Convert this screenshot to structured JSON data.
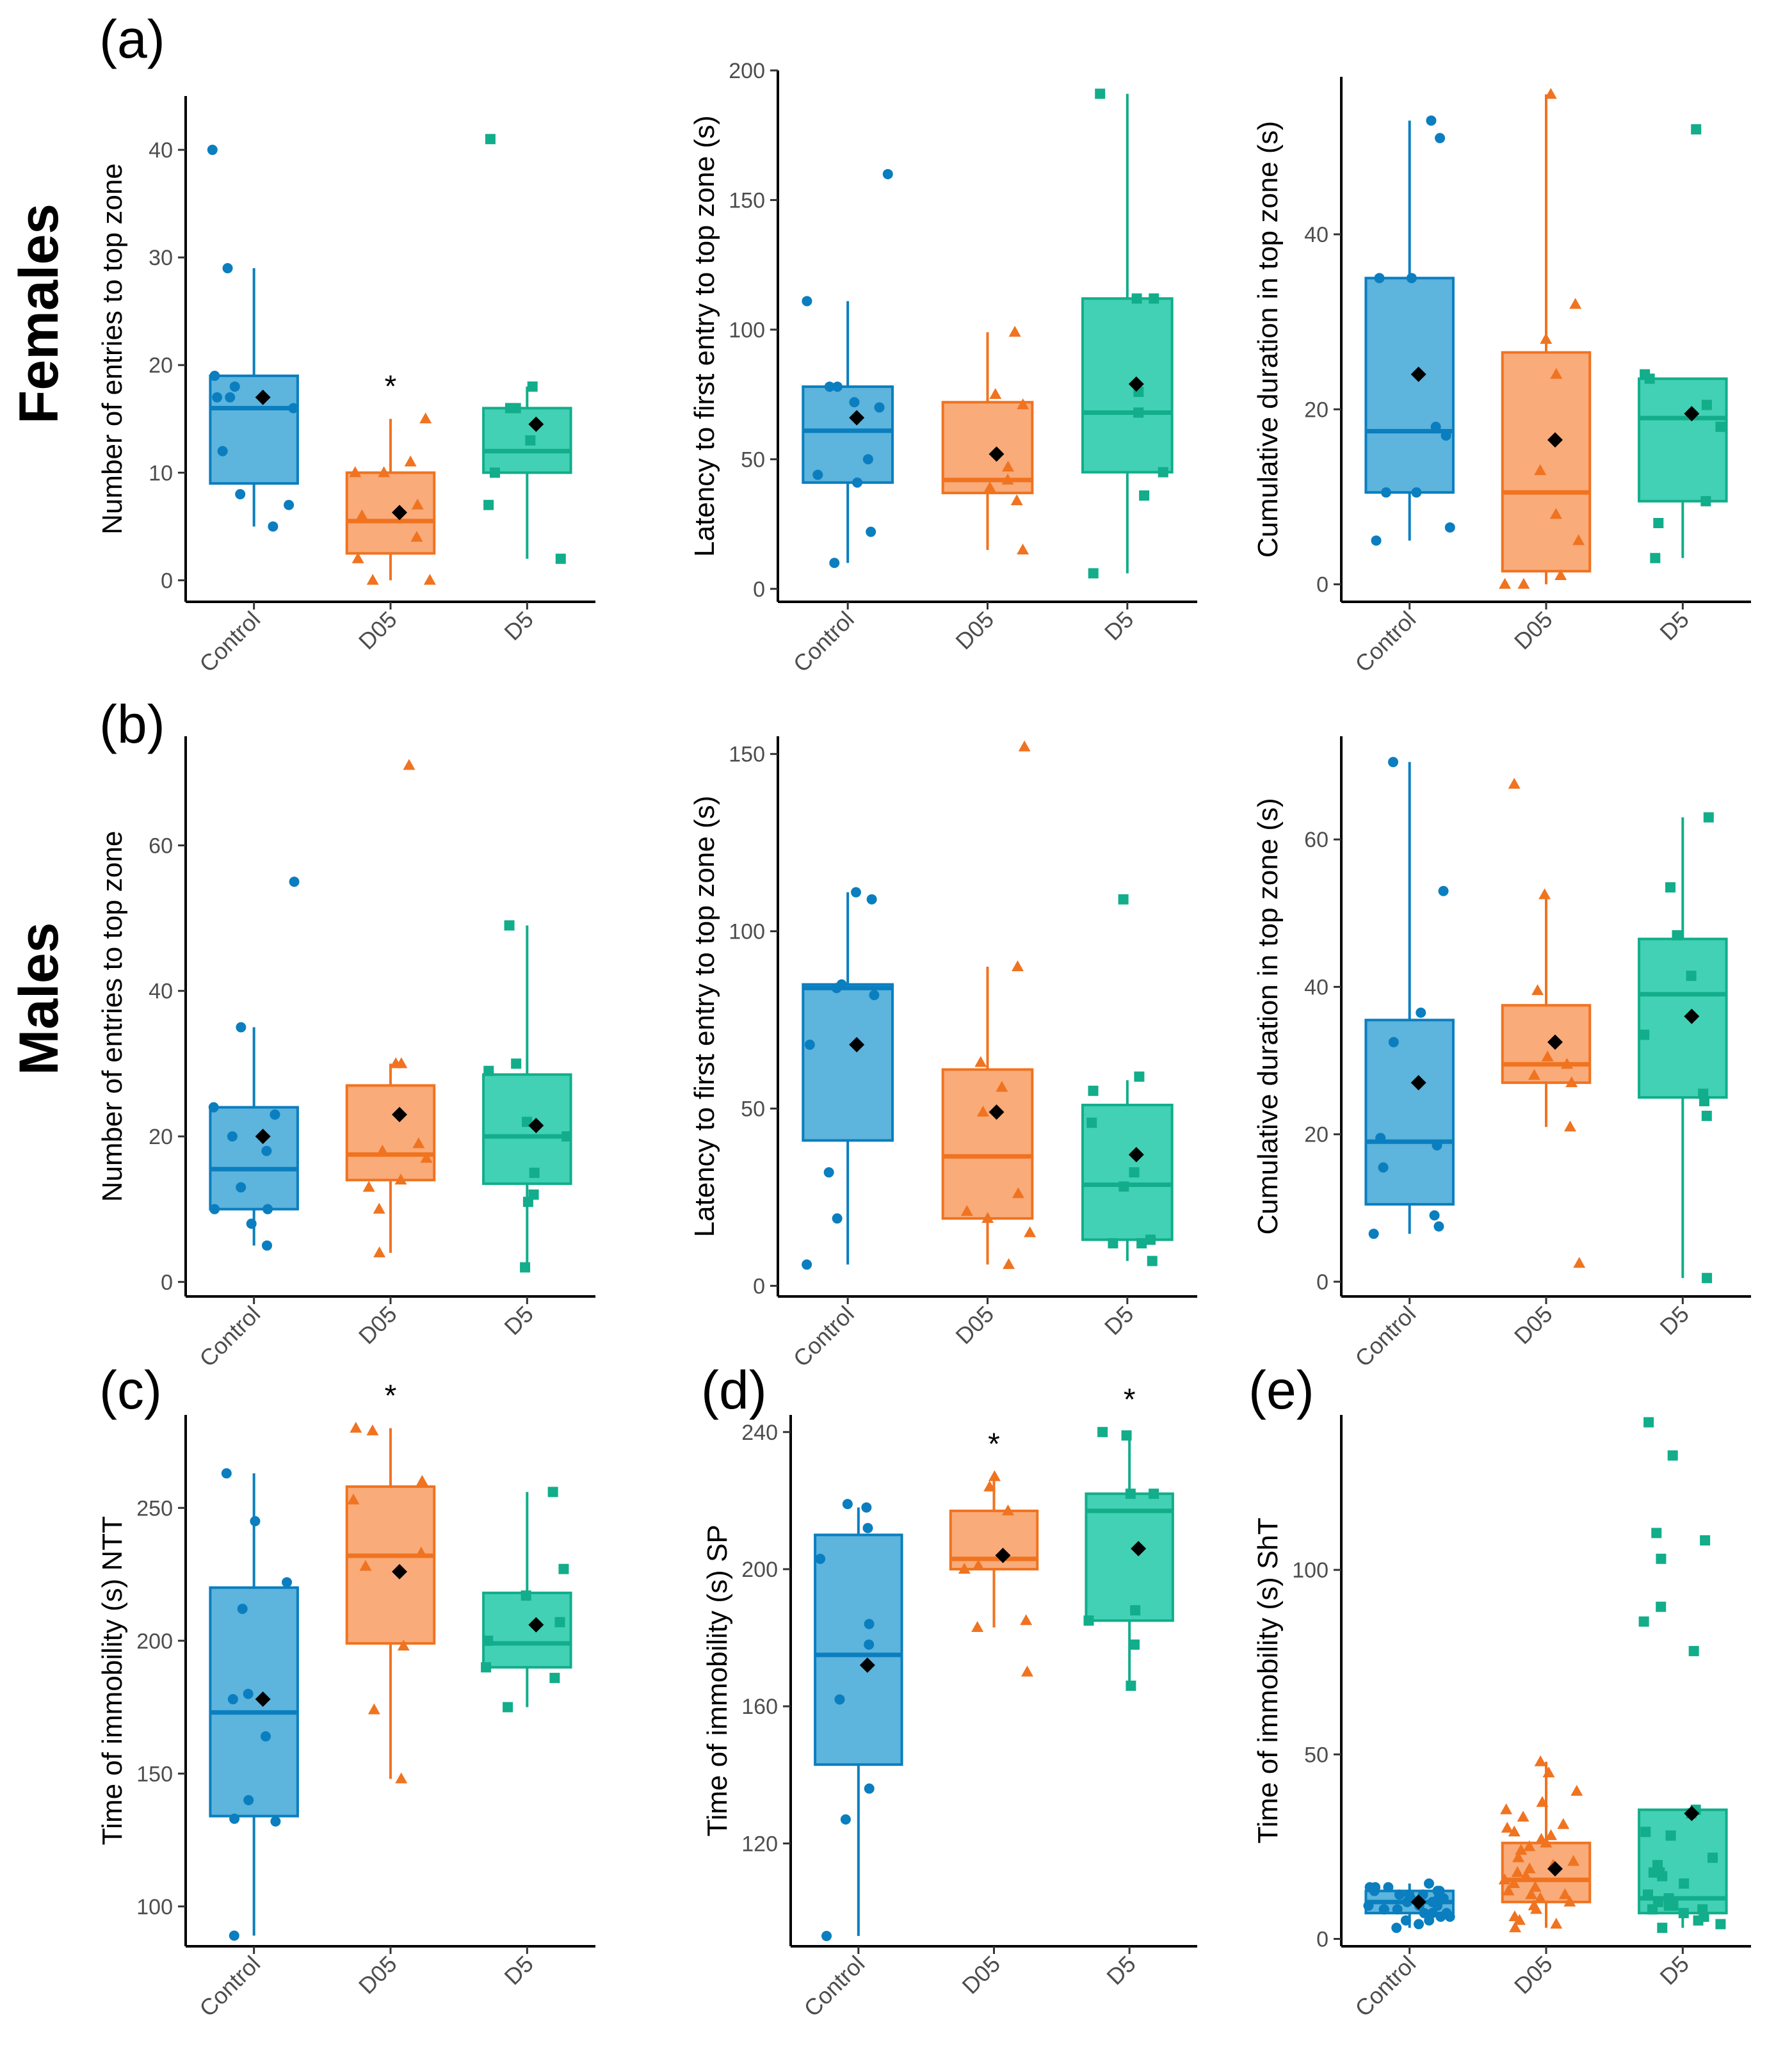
{
  "colors": {
    "Control": "#0a7ebf",
    "D05": "#f07320",
    "D5": "#12ad8a",
    "Control_fill": "#5db4dc",
    "D05_fill": "#f9ab7a",
    "D5_fill": "#42d1b4",
    "mean": "#000000",
    "axis": "#000000"
  },
  "chart_data": [
    {
      "id": "a1",
      "letter": "(a)",
      "type": "boxplot",
      "ylabel": "Number of entries to top zone",
      "categories": [
        "Control",
        "D05",
        "D5"
      ],
      "ylim": [
        -2,
        45
      ],
      "yticks": [
        0,
        10,
        20,
        30,
        40
      ],
      "boxes": [
        {
          "q1": 9,
          "median": 16,
          "q3": 19,
          "whisker_low": 5,
          "whisker_high": 29,
          "mean": 17,
          "points": [
            40,
            29,
            19,
            18,
            17,
            17,
            16,
            12,
            8,
            7,
            5
          ]
        },
        {
          "q1": 2.5,
          "median": 5.5,
          "q3": 10,
          "whisker_low": 0,
          "whisker_high": 15,
          "mean": 6.3,
          "points": [
            15,
            11,
            10,
            10,
            7,
            6,
            4,
            2,
            0,
            0
          ]
        },
        {
          "q1": 10,
          "median": 12,
          "q3": 16,
          "whisker_low": 2,
          "whisker_high": 18,
          "mean": 14.5,
          "points": [
            41,
            18,
            16,
            16,
            13,
            10,
            7,
            2
          ]
        }
      ],
      "sig": [
        "",
        "*",
        ""
      ]
    },
    {
      "id": "a2",
      "letter": "",
      "type": "boxplot",
      "ylabel": "Latency to first entry to top zone (s)",
      "categories": [
        "Control",
        "D05",
        "D5"
      ],
      "ylim": [
        -5,
        200
      ],
      "yticks": [
        0,
        50,
        100,
        150,
        200
      ],
      "boxes": [
        {
          "q1": 41,
          "median": 61,
          "q3": 78,
          "whisker_low": 10,
          "whisker_high": 111,
          "mean": 66,
          "points": [
            160,
            111,
            78,
            78,
            72,
            70,
            50,
            44,
            41,
            22,
            10
          ]
        },
        {
          "q1": 37,
          "median": 42,
          "q3": 72,
          "whisker_low": 15,
          "whisker_high": 99,
          "mean": 52,
          "points": [
            99,
            75,
            71,
            47,
            42,
            39,
            34,
            15
          ]
        },
        {
          "q1": 45,
          "median": 68,
          "q3": 112,
          "whisker_low": 6,
          "whisker_high": 191,
          "mean": 79,
          "points": [
            191,
            112,
            112,
            76,
            68,
            45,
            36,
            6
          ]
        }
      ],
      "sig": [
        "",
        "",
        ""
      ]
    },
    {
      "id": "a3",
      "letter": "",
      "type": "boxplot",
      "ylabel": "Cumulative duration in top zone (s)",
      "categories": [
        "Control",
        "D05",
        "D5"
      ],
      "ylim": [
        -2,
        58
      ],
      "yticks": [
        0,
        20,
        40
      ],
      "boxes": [
        {
          "q1": 10.5,
          "median": 17.5,
          "q3": 35,
          "whisker_low": 5,
          "whisker_high": 53,
          "mean": 24,
          "points": [
            53,
            51,
            35,
            35,
            18,
            17,
            10.5,
            10.5,
            6.5,
            5
          ]
        },
        {
          "q1": 1.5,
          "median": 10.5,
          "q3": 26.5,
          "whisker_low": 0,
          "whisker_high": 56,
          "mean": 16.5,
          "points": [
            56,
            32,
            28,
            24,
            13,
            8,
            5,
            1,
            0,
            0
          ]
        },
        {
          "q1": 9.5,
          "median": 19,
          "q3": 23.5,
          "whisker_low": 3,
          "whisker_high": 23.5,
          "mean": 19.5,
          "points": [
            52,
            24,
            23.5,
            20.5,
            18,
            9.5,
            7,
            3
          ]
        }
      ],
      "sig": [
        "",
        "",
        ""
      ]
    },
    {
      "id": "b1",
      "letter": "(b)",
      "type": "boxplot",
      "ylabel": "Number of entries to top zone",
      "categories": [
        "Control",
        "D05",
        "D5"
      ],
      "ylim": [
        -2,
        75
      ],
      "yticks": [
        0,
        20,
        40,
        60
      ],
      "boxes": [
        {
          "q1": 10,
          "median": 15.5,
          "q3": 24,
          "whisker_low": 5,
          "whisker_high": 35,
          "mean": 20,
          "points": [
            55,
            35,
            24,
            23,
            20,
            18,
            13,
            10,
            10,
            8,
            5
          ]
        },
        {
          "q1": 14,
          "median": 17.5,
          "q3": 27,
          "whisker_low": 4,
          "whisker_high": 30,
          "mean": 23,
          "points": [
            71,
            30,
            30,
            19,
            18,
            17,
            14,
            13,
            10,
            4
          ]
        },
        {
          "q1": 13.5,
          "median": 20,
          "q3": 28.5,
          "whisker_low": 2,
          "whisker_high": 49,
          "mean": 21.5,
          "points": [
            49,
            30,
            29,
            22,
            20,
            15,
            12,
            11,
            2
          ]
        }
      ],
      "sig": [
        "",
        "",
        ""
      ]
    },
    {
      "id": "b2",
      "letter": "",
      "type": "boxplot",
      "ylabel": "Latency to first entry to top zone (s)",
      "categories": [
        "Control",
        "D05",
        "D5"
      ],
      "ylim": [
        -3,
        155
      ],
      "yticks": [
        0,
        50,
        100,
        150
      ],
      "boxes": [
        {
          "q1": 41,
          "median": 84,
          "q3": 85,
          "whisker_low": 6,
          "whisker_high": 111,
          "mean": 68,
          "points": [
            111,
            109,
            85,
            84,
            82,
            68,
            32,
            19,
            6
          ]
        },
        {
          "q1": 19,
          "median": 36.5,
          "q3": 61,
          "whisker_low": 6,
          "whisker_high": 90,
          "mean": 49,
          "points": [
            152,
            90,
            63,
            56,
            49,
            26,
            21,
            19,
            15,
            6
          ]
        },
        {
          "q1": 13,
          "median": 28.5,
          "q3": 51,
          "whisker_low": 7,
          "whisker_high": 58,
          "mean": 37,
          "points": [
            109,
            59,
            55,
            46,
            32,
            28,
            13,
            12,
            12,
            7
          ]
        }
      ],
      "sig": [
        "",
        "",
        ""
      ]
    },
    {
      "id": "b3",
      "letter": "",
      "type": "boxplot",
      "ylabel": "Cumulative duration in top zone (s)",
      "categories": [
        "Control",
        "D05",
        "D5"
      ],
      "ylim": [
        -2,
        74
      ],
      "yticks": [
        0,
        20,
        40,
        60
      ],
      "boxes": [
        {
          "q1": 10.5,
          "median": 19,
          "q3": 35.5,
          "whisker_low": 6.5,
          "whisker_high": 70.5,
          "mean": 27,
          "points": [
            70.5,
            53,
            36.5,
            32.5,
            19.5,
            18.5,
            15.5,
            9,
            7.5,
            6.5
          ]
        },
        {
          "q1": 27,
          "median": 29.5,
          "q3": 37.5,
          "whisker_low": 21,
          "whisker_high": 52.5,
          "mean": 32.5,
          "points": [
            67.5,
            52.5,
            39.5,
            30.5,
            29.5,
            28,
            27,
            21,
            2.5
          ]
        },
        {
          "q1": 25,
          "median": 39,
          "q3": 46.5,
          "whisker_low": 0.5,
          "whisker_high": 63,
          "mean": 36,
          "points": [
            63,
            53.5,
            47,
            41.5,
            33.5,
            25.5,
            24.5,
            22.5,
            0.5
          ]
        }
      ],
      "sig": [
        "",
        "",
        ""
      ]
    },
    {
      "id": "c",
      "letter": "(c)",
      "type": "boxplot",
      "ylabel": "Time of immobility (s) NTT",
      "categories": [
        "Control",
        "D05",
        "D5"
      ],
      "ylim": [
        85,
        285
      ],
      "yticks": [
        100,
        150,
        200,
        250
      ],
      "boxes": [
        {
          "q1": 134,
          "median": 173,
          "q3": 220,
          "whisker_low": 89,
          "whisker_high": 263,
          "mean": 178,
          "points": [
            263,
            245,
            222,
            212,
            180,
            178,
            164,
            140,
            133,
            132,
            89
          ]
        },
        {
          "q1": 199,
          "median": 232,
          "q3": 258,
          "whisker_low": 148,
          "whisker_high": 280,
          "mean": 226,
          "points": [
            280,
            279,
            260,
            253,
            233,
            228,
            198,
            174,
            148
          ]
        },
        {
          "q1": 190,
          "median": 199,
          "q3": 218,
          "whisker_low": 175,
          "whisker_high": 256,
          "mean": 206,
          "points": [
            256,
            227,
            217,
            207,
            200,
            190,
            186,
            175
          ]
        }
      ],
      "sig": [
        "",
        "*",
        ""
      ]
    },
    {
      "id": "d",
      "letter": "(d)",
      "type": "boxplot",
      "ylabel": "Time of immobility (s) SP",
      "categories": [
        "Control",
        "D05",
        "D5"
      ],
      "ylim": [
        90,
        245
      ],
      "yticks": [
        120,
        160,
        200,
        240
      ],
      "boxes": [
        {
          "q1": 143,
          "median": 175,
          "q3": 210,
          "whisker_low": 93,
          "whisker_high": 218,
          "mean": 172,
          "points": [
            219,
            218,
            212,
            203,
            184,
            178,
            162,
            136,
            127,
            93
          ]
        },
        {
          "q1": 200,
          "median": 203,
          "q3": 217,
          "whisker_low": 183,
          "whisker_high": 227,
          "mean": 204,
          "points": [
            227,
            224,
            217,
            201,
            200,
            185,
            183,
            170
          ]
        },
        {
          "q1": 185,
          "median": 217,
          "q3": 222,
          "whisker_low": 166,
          "whisker_high": 240,
          "mean": 206,
          "points": [
            240,
            239,
            222,
            222,
            188,
            185,
            178,
            166
          ]
        }
      ],
      "sig": [
        "",
        "*",
        "*"
      ]
    },
    {
      "id": "e",
      "letter": "(e)",
      "type": "boxplot",
      "ylabel": "Time of immobility (s) ShT",
      "categories": [
        "Control",
        "D05",
        "D5"
      ],
      "ylim": [
        -2,
        142
      ],
      "yticks": [
        0,
        50,
        100
      ],
      "boxes": [
        {
          "q1": 7,
          "median": 10,
          "q3": 13,
          "whisker_low": 3,
          "whisker_high": 15,
          "mean": 10,
          "points": [
            15,
            14,
            14,
            14,
            13,
            13,
            13,
            12,
            12,
            12,
            11,
            11,
            11,
            10,
            10,
            10,
            10,
            9,
            9,
            9,
            8,
            8,
            8,
            7,
            7,
            7,
            6,
            6,
            5,
            5,
            4,
            3
          ]
        },
        {
          "q1": 10,
          "median": 16,
          "q3": 26,
          "whisker_low": 3,
          "whisker_high": 48,
          "mean": 19,
          "points": [
            48,
            45,
            40,
            37,
            35,
            33,
            31,
            30,
            29,
            28,
            27,
            26,
            25,
            24,
            22,
            21,
            20,
            19,
            18,
            17,
            16,
            15,
            14,
            13,
            12,
            12,
            11,
            10,
            9,
            8,
            6,
            5,
            4,
            3
          ]
        },
        {
          "q1": 7,
          "median": 11,
          "q3": 35,
          "whisker_low": 3,
          "whisker_high": 35,
          "mean": 34,
          "points": [
            140,
            131,
            110,
            108,
            103,
            90,
            86,
            78,
            35,
            34,
            29,
            28,
            22,
            20,
            18,
            18,
            17,
            15,
            12,
            11,
            10,
            9,
            9,
            8,
            8,
            7,
            6,
            5,
            4,
            3
          ]
        }
      ],
      "sig": [
        "",
        "",
        ""
      ]
    }
  ],
  "row_labels": {
    "females": "Females",
    "males": "Males"
  }
}
